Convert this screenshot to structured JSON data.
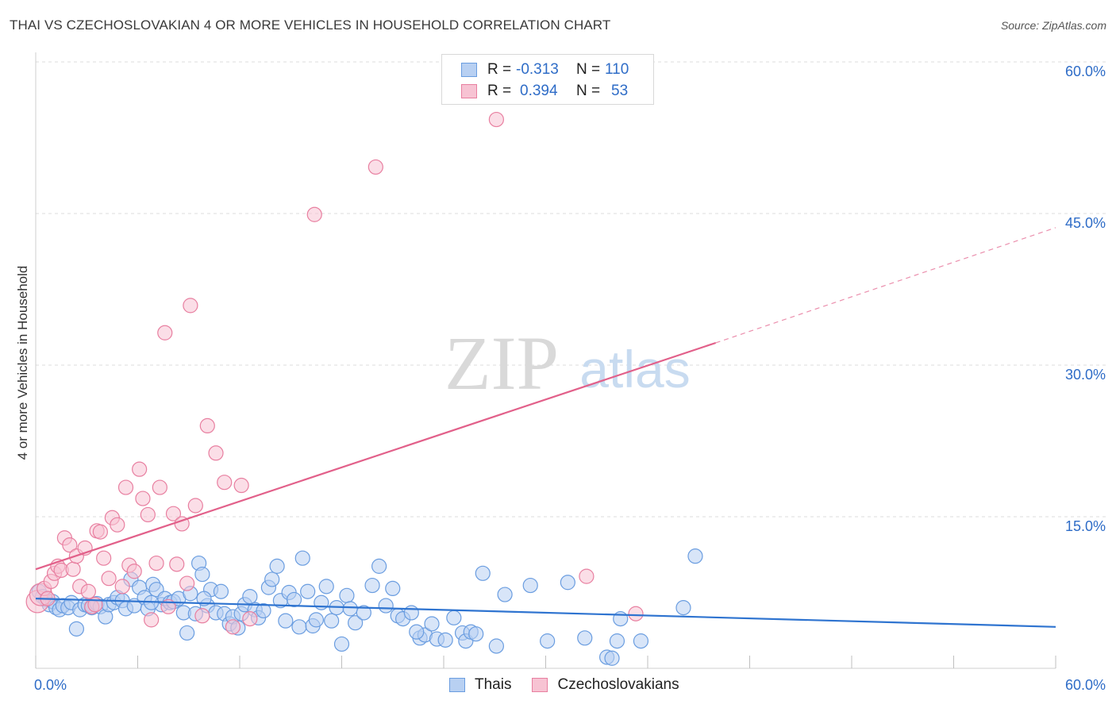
{
  "header": {
    "title": "THAI VS CZECHOSLOVAKIAN 4 OR MORE VEHICLES IN HOUSEHOLD CORRELATION CHART",
    "source": "Source: ZipAtlas.com"
  },
  "watermark": {
    "zip": "ZIP",
    "atlas": "atlas"
  },
  "legend": {
    "rows": [
      {
        "r_label": "R =",
        "r_value": "-0.313",
        "n_label": "N =",
        "n_value": "110",
        "color": "#6a9de0",
        "fill": "#b8d0f2"
      },
      {
        "r_label": "R =",
        "r_value": "0.394",
        "n_label": "N =",
        "n_value": "53",
        "color": "#e87fa0",
        "fill": "#f7c3d3"
      }
    ]
  },
  "bottom_legend": {
    "items": [
      "Thais",
      "Czechoslovakians"
    ]
  },
  "chart_data": {
    "type": "scatter",
    "title": "THAI VS CZECHOSLOVAKIAN 4 OR MORE VEHICLES IN HOUSEHOLD CORRELATION CHART",
    "xlabel": "",
    "ylabel": "4 or more Vehicles in Household",
    "xlim": [
      0,
      60
    ],
    "ylim": [
      0,
      60
    ],
    "x_tick_labels": [
      "0.0%",
      "60.0%"
    ],
    "y_tick_labels": [
      "15.0%",
      "30.0%",
      "45.0%",
      "60.0%"
    ],
    "y_ticks": [
      15,
      30,
      45,
      60
    ],
    "grid": true,
    "legend_position": "top-center",
    "series": [
      {
        "name": "Thais",
        "color": "#6a9de0",
        "fill": "#b8d0f2",
        "trend": {
          "x": [
            0,
            60
          ],
          "y": [
            6.9,
            4.1
          ],
          "dashed_beyond": null
        },
        "points": [
          [
            0.2,
            7.6
          ],
          [
            0.4,
            7.1
          ],
          [
            0.6,
            6.8
          ],
          [
            0.8,
            6.3
          ],
          [
            1.0,
            6.6
          ],
          [
            1.2,
            6.0
          ],
          [
            1.4,
            5.8
          ],
          [
            1.6,
            6.2
          ],
          [
            1.9,
            6.0
          ],
          [
            2.1,
            6.5
          ],
          [
            2.4,
            3.9
          ],
          [
            2.6,
            5.8
          ],
          [
            2.9,
            6.3
          ],
          [
            3.1,
            6.2
          ],
          [
            3.3,
            6.0
          ],
          [
            3.6,
            6.4
          ],
          [
            3.8,
            6.1
          ],
          [
            4.1,
            5.1
          ],
          [
            4.3,
            6.3
          ],
          [
            4.6,
            6.5
          ],
          [
            4.8,
            7.0
          ],
          [
            5.1,
            6.7
          ],
          [
            5.3,
            5.9
          ],
          [
            5.6,
            8.8
          ],
          [
            5.8,
            6.2
          ],
          [
            6.1,
            8.0
          ],
          [
            6.4,
            7.0
          ],
          [
            6.6,
            5.9
          ],
          [
            6.9,
            8.3
          ],
          [
            7.1,
            7.8
          ],
          [
            7.4,
            6.3
          ],
          [
            7.6,
            6.9
          ],
          [
            7.9,
            6.5
          ],
          [
            8.1,
            6.6
          ],
          [
            8.4,
            6.9
          ],
          [
            8.7,
            5.5
          ],
          [
            8.9,
            3.5
          ],
          [
            9.1,
            7.4
          ],
          [
            9.4,
            5.4
          ],
          [
            9.6,
            10.4
          ],
          [
            9.8,
            9.3
          ],
          [
            10.1,
            6.2
          ],
          [
            10.3,
            7.8
          ],
          [
            10.6,
            5.5
          ],
          [
            10.9,
            7.6
          ],
          [
            11.1,
            5.4
          ],
          [
            11.4,
            4.4
          ],
          [
            11.6,
            5.1
          ],
          [
            11.9,
            4.0
          ],
          [
            12.1,
            5.4
          ],
          [
            12.3,
            6.3
          ],
          [
            12.6,
            7.1
          ],
          [
            12.9,
            5.8
          ],
          [
            13.1,
            5.0
          ],
          [
            13.4,
            5.7
          ],
          [
            13.7,
            8.0
          ],
          [
            13.9,
            8.8
          ],
          [
            14.2,
            10.1
          ],
          [
            14.4,
            6.7
          ],
          [
            14.7,
            4.7
          ],
          [
            14.9,
            7.5
          ],
          [
            15.2,
            6.8
          ],
          [
            15.5,
            4.1
          ],
          [
            15.7,
            10.9
          ],
          [
            16.0,
            7.6
          ],
          [
            16.3,
            4.2
          ],
          [
            16.5,
            4.8
          ],
          [
            16.8,
            6.5
          ],
          [
            17.1,
            8.1
          ],
          [
            17.4,
            4.7
          ],
          [
            17.7,
            6.0
          ],
          [
            18.0,
            2.4
          ],
          [
            18.3,
            7.2
          ],
          [
            18.5,
            5.9
          ],
          [
            18.8,
            4.5
          ],
          [
            19.3,
            5.5
          ],
          [
            19.8,
            8.2
          ],
          [
            20.2,
            10.1
          ],
          [
            20.6,
            6.2
          ],
          [
            21.0,
            7.9
          ],
          [
            21.3,
            5.2
          ],
          [
            21.6,
            4.9
          ],
          [
            22.1,
            5.5
          ],
          [
            22.6,
            3.0
          ],
          [
            22.9,
            3.3
          ],
          [
            23.3,
            4.4
          ],
          [
            23.6,
            2.9
          ],
          [
            24.1,
            2.8
          ],
          [
            24.6,
            5.0
          ],
          [
            25.1,
            3.5
          ],
          [
            25.3,
            2.7
          ],
          [
            25.6,
            3.6
          ],
          [
            25.9,
            3.4
          ],
          [
            26.3,
            9.4
          ],
          [
            27.1,
            2.2
          ],
          [
            27.6,
            7.3
          ],
          [
            29.1,
            8.2
          ],
          [
            30.1,
            2.7
          ],
          [
            31.3,
            8.5
          ],
          [
            32.3,
            3.0
          ],
          [
            33.6,
            1.1
          ],
          [
            33.9,
            1.0
          ],
          [
            34.2,
            2.7
          ],
          [
            34.4,
            4.9
          ],
          [
            35.6,
            2.7
          ],
          [
            38.1,
            6.0
          ],
          [
            38.8,
            11.1
          ],
          [
            22.4,
            3.6
          ],
          [
            6.8,
            6.5
          ],
          [
            9.9,
            6.9
          ]
        ]
      },
      {
        "name": "Czechoslovakians",
        "color": "#e87fa0",
        "fill": "#f7c3d3",
        "trend": {
          "x": [
            0,
            40
          ],
          "y": [
            9.8,
            32.2
          ],
          "dashed_to": [
            60,
            43.6
          ]
        },
        "points": [
          [
            0.1,
            6.6
          ],
          [
            0.3,
            7.3
          ],
          [
            0.5,
            7.9
          ],
          [
            0.7,
            6.9
          ],
          [
            0.9,
            8.6
          ],
          [
            1.1,
            9.4
          ],
          [
            1.3,
            10.1
          ],
          [
            1.5,
            9.7
          ],
          [
            1.7,
            12.9
          ],
          [
            2.0,
            12.2
          ],
          [
            2.2,
            9.8
          ],
          [
            2.4,
            11.1
          ],
          [
            2.6,
            8.1
          ],
          [
            2.9,
            11.9
          ],
          [
            3.1,
            7.6
          ],
          [
            3.3,
            6.1
          ],
          [
            3.6,
            13.6
          ],
          [
            3.8,
            13.5
          ],
          [
            4.0,
            10.9
          ],
          [
            4.3,
            8.9
          ],
          [
            4.5,
            14.9
          ],
          [
            4.8,
            14.2
          ],
          [
            5.1,
            8.1
          ],
          [
            5.3,
            17.9
          ],
          [
            5.5,
            10.2
          ],
          [
            5.8,
            9.6
          ],
          [
            6.1,
            19.7
          ],
          [
            6.3,
            16.8
          ],
          [
            6.6,
            15.2
          ],
          [
            6.8,
            4.8
          ],
          [
            7.1,
            10.4
          ],
          [
            7.3,
            17.9
          ],
          [
            7.6,
            33.2
          ],
          [
            7.8,
            6.1
          ],
          [
            8.1,
            15.3
          ],
          [
            8.3,
            10.3
          ],
          [
            8.6,
            14.3
          ],
          [
            8.9,
            8.4
          ],
          [
            9.1,
            35.9
          ],
          [
            9.4,
            16.1
          ],
          [
            9.8,
            5.2
          ],
          [
            10.1,
            24.0
          ],
          [
            10.6,
            21.3
          ],
          [
            11.1,
            18.4
          ],
          [
            11.6,
            4.1
          ],
          [
            12.1,
            18.1
          ],
          [
            12.6,
            4.9
          ],
          [
            16.4,
            44.9
          ],
          [
            20.0,
            49.6
          ],
          [
            27.1,
            54.3
          ],
          [
            32.4,
            9.1
          ],
          [
            35.3,
            5.4
          ],
          [
            3.5,
            6.3
          ]
        ]
      }
    ]
  }
}
